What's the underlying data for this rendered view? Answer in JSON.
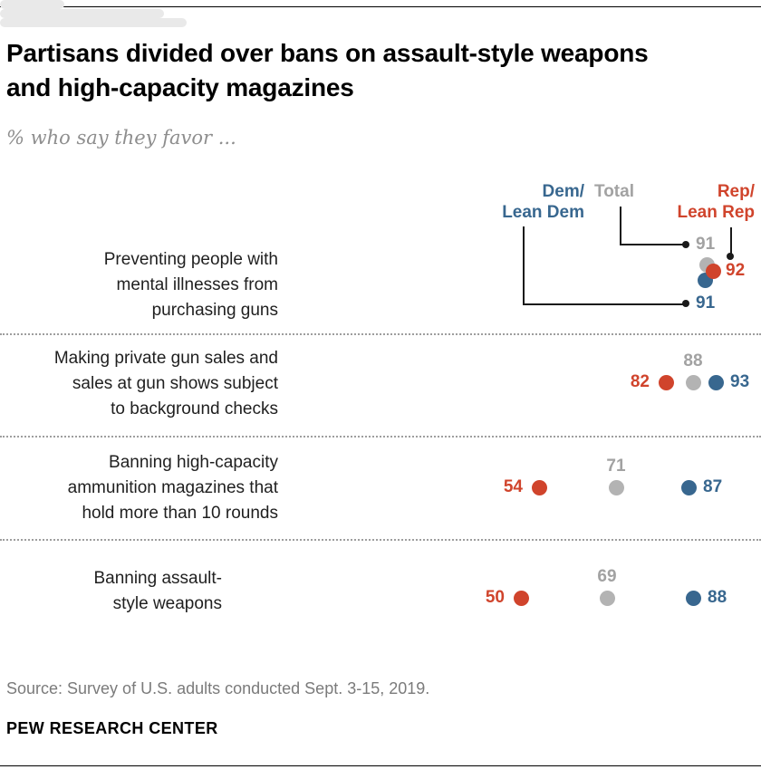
{
  "header": {
    "title_lines": [
      "Partisans divided over bans on assault-style weapons",
      "and high-capacity magazines"
    ],
    "subtitle": "% who say they favor ..."
  },
  "legend": {
    "dem_lines": [
      "Dem/",
      "Lean Dem"
    ],
    "total": "Total",
    "rep_lines": [
      "Rep/",
      "Lean Rep"
    ]
  },
  "colors": {
    "dem": "#38678f",
    "rep": "#d0442c",
    "total_dot": "#b3b3b3",
    "total_text": "#a2a2a2",
    "track": "#e9e9e9",
    "callout": "#1a1a1a"
  },
  "chart_data": {
    "type": "scatter",
    "subtype": "dumbbell-dot-plot",
    "title": "Partisans divided over bans on assault-style weapons and high-capacity magazines",
    "subtitle": "% who say they favor ...",
    "unit": "% who favor",
    "categories": [
      "Preventing people with mental illnesses from purchasing guns",
      "Making private gun sales and sales at gun shows subject to background checks",
      "Banning high-capacity ammunition magazines that hold more than 10 rounds",
      "Banning assault-style weapons"
    ],
    "series": [
      {
        "name": "Dem/Lean Dem",
        "color": "#38678f",
        "values": [
          91,
          93,
          87,
          88
        ]
      },
      {
        "name": "Total",
        "color": "#b3b3b3",
        "values": [
          91,
          88,
          71,
          69
        ]
      },
      {
        "name": "Rep/Lean Rep",
        "color": "#d0442c",
        "values": [
          92,
          82,
          54,
          50
        ]
      }
    ],
    "x_range": [
      50,
      93
    ],
    "legend_position": "top-right",
    "grid": false
  },
  "rows": [
    {
      "label_lines": [
        "Preventing people with",
        "mental illnesses from",
        "purchasing guns"
      ],
      "values": {
        "dem": 91,
        "total": 91,
        "rep": 92
      }
    },
    {
      "label_lines": [
        "Making private gun sales and",
        "sales at gun shows subject",
        "to background checks"
      ],
      "values": {
        "dem": 93,
        "total": 88,
        "rep": 82
      }
    },
    {
      "label_lines": [
        "Banning high-capacity",
        "ammunition magazines that",
        "hold more than 10 rounds"
      ],
      "values": {
        "dem": 87,
        "total": 71,
        "rep": 54
      }
    },
    {
      "label_lines": [
        "Banning assault-",
        "style weapons"
      ],
      "values": {
        "dem": 88,
        "total": 69,
        "rep": 50
      }
    }
  ],
  "footer": {
    "source": "Source: Survey of U.S. adults conducted Sept. 3-15, 2019.",
    "brand": "PEW RESEARCH CENTER"
  }
}
